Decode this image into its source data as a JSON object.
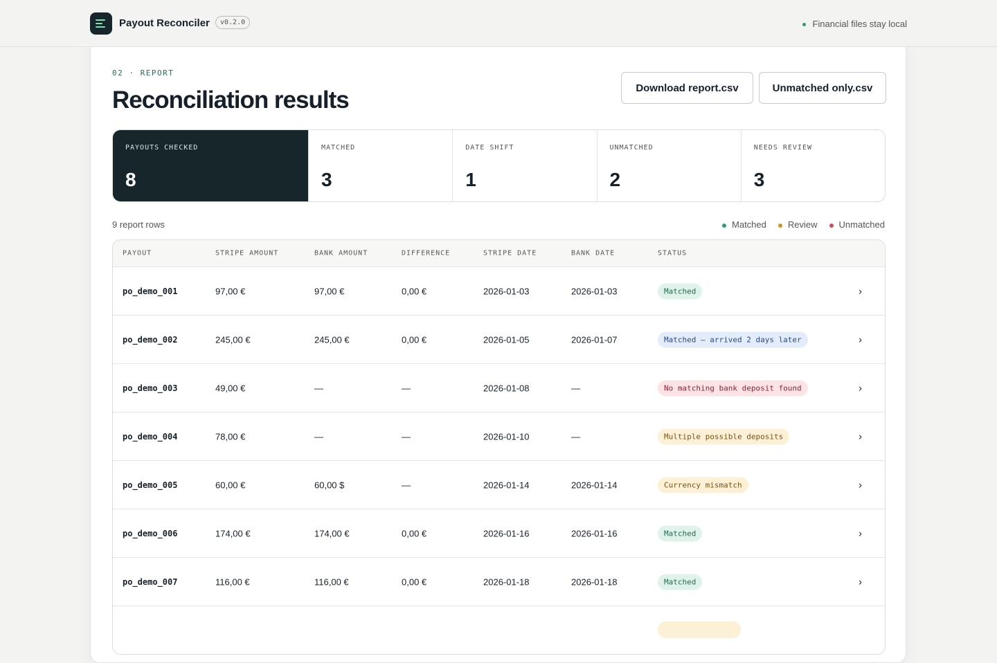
{
  "header": {
    "title": "Payout Reconciler",
    "version": "v0.2.0",
    "note": "Financial files stay local"
  },
  "report": {
    "eyebrow": "02 · REPORT",
    "title": "Reconciliation results",
    "buttons": [
      "Download report.csv",
      "Unmatched only.csv"
    ],
    "stats": [
      {
        "label": "PAYOUTS CHECKED",
        "value": 8
      },
      {
        "label": "MATCHED",
        "value": 3
      },
      {
        "label": "DATE SHIFT",
        "value": 1
      },
      {
        "label": "UNMATCHED",
        "value": 2
      },
      {
        "label": "NEEDS REVIEW",
        "value": 3
      }
    ],
    "row_count": "9 report rows",
    "legend": [
      {
        "label": "Matched",
        "color": "#2f9e6e"
      },
      {
        "label": "Review",
        "color": "#d4912a"
      },
      {
        "label": "Unmatched",
        "color": "#d04a5c"
      }
    ]
  },
  "table": {
    "columns": [
      "PAYOUT",
      "STRIPE AMOUNT",
      "BANK AMOUNT",
      "DIFFERENCE",
      "STRIPE DATE",
      "BANK DATE",
      "STATUS"
    ],
    "rows": [
      {
        "cells": [
          "po_demo_001",
          "97,00 €",
          "97,00 €",
          "0,00 €",
          "2026-01-03",
          "2026-01-03",
          "Matched"
        ],
        "status_color": "green"
      },
      {
        "cells": [
          "po_demo_002",
          "245,00 €",
          "245,00 €",
          "0,00 €",
          "2026-01-05",
          "2026-01-07",
          "Matched — arrived 2 days later"
        ],
        "status_color": "blue"
      },
      {
        "cells": [
          "po_demo_003",
          "49,00 €",
          "—",
          "—",
          "2026-01-08",
          "—",
          "No matching bank deposit found"
        ],
        "status_color": "red"
      },
      {
        "cells": [
          "po_demo_004",
          "78,00 €",
          "—",
          "—",
          "2026-01-10",
          "—",
          "Multiple possible deposits"
        ],
        "status_color": "orange"
      },
      {
        "cells": [
          "po_demo_005",
          "60,00 €",
          "60,00 $",
          "—",
          "2026-01-14",
          "2026-01-14",
          "Currency mismatch"
        ],
        "status_color": "orange"
      },
      {
        "cells": [
          "po_demo_006",
          "174,00 €",
          "174,00 €",
          "0,00 €",
          "2026-01-16",
          "2026-01-16",
          "Matched"
        ],
        "status_color": "green"
      },
      {
        "cells": [
          "po_demo_007",
          "116,00 €",
          "116,00 €",
          "0,00 €",
          "2026-01-18",
          "2026-01-18",
          "Matched"
        ],
        "status_color": "green"
      }
    ]
  }
}
